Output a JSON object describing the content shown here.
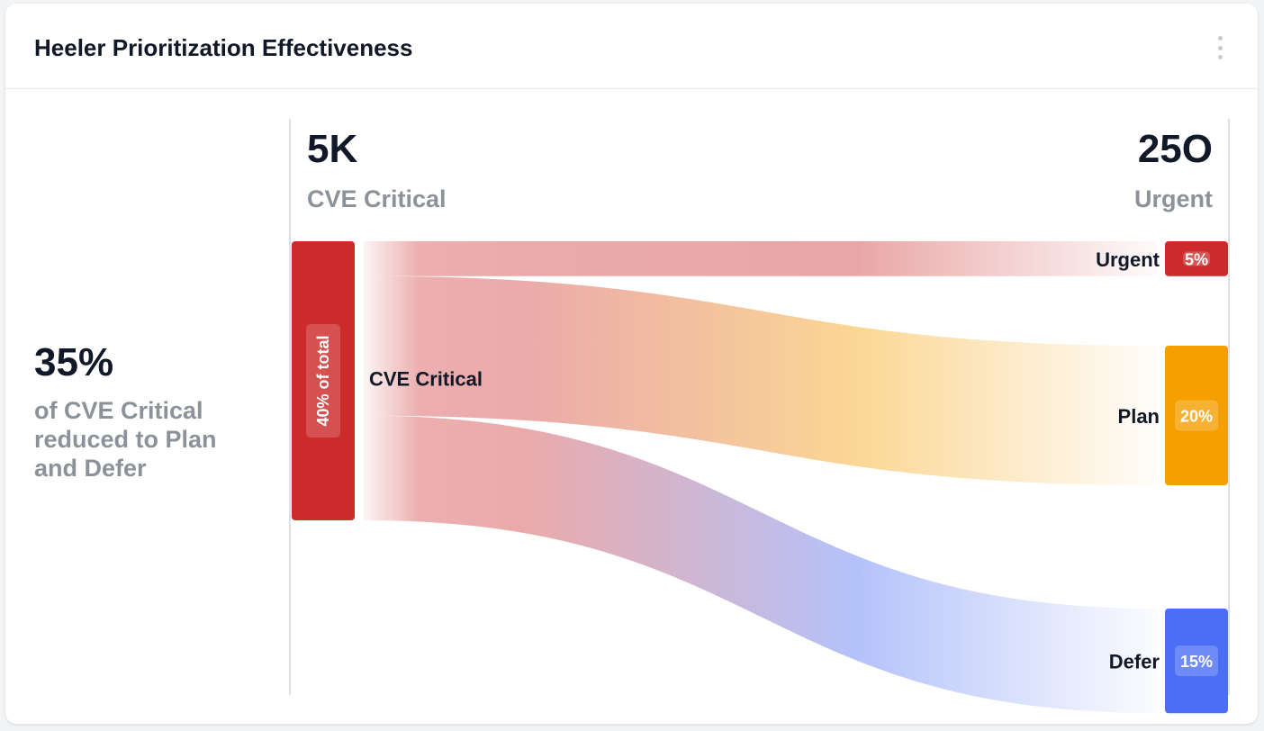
{
  "card": {
    "title": "Heeler Prioritization Effectiveness",
    "menu_icon": "kebab-menu-icon"
  },
  "summary": {
    "value": "35%",
    "text": "of CVE Critical reduced to Plan and Defer"
  },
  "colors": {
    "source": "#cc2b2b",
    "urgent": "#cc2b2b",
    "plan": "#f59f00",
    "defer": "#4c6ef5",
    "divider": "#d1d5db"
  },
  "chart_data": {
    "type": "sankey",
    "left_header": {
      "value": "5K",
      "label": "CVE Critical"
    },
    "right_header": {
      "value": "25O",
      "label": "Urgent"
    },
    "source": {
      "name": "CVE Critical",
      "pct_label": "40% of total",
      "value": 40
    },
    "targets": [
      {
        "name": "Urgent",
        "pct_label": "5%",
        "value": 5
      },
      {
        "name": "Plan",
        "pct_label": "20%",
        "value": 20
      },
      {
        "name": "Defer",
        "pct_label": "15%",
        "value": 15
      }
    ]
  }
}
